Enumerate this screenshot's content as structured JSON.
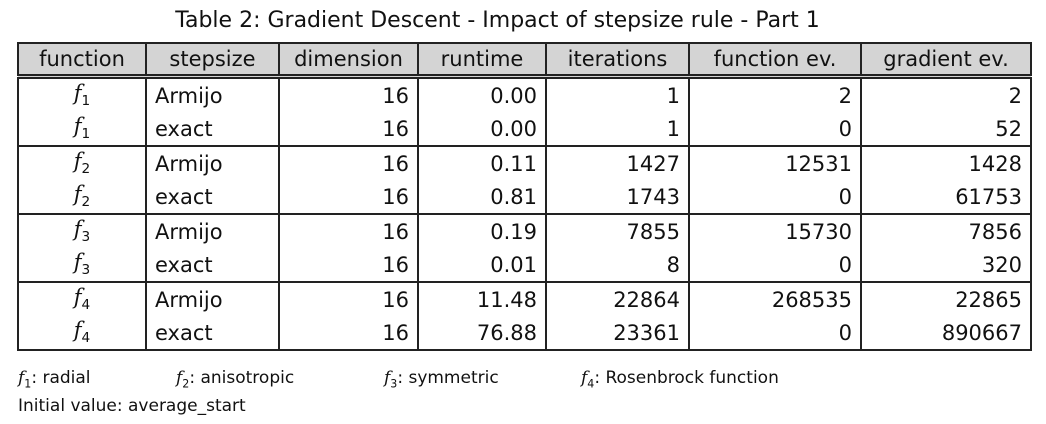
{
  "title": "Table 2: Gradient Descent - Impact of stepsize rule - Part 1",
  "table": {
    "header": [
      "function",
      "stepsize",
      "dimension",
      "runtime",
      "iterations",
      "function ev.",
      "gradient ev."
    ],
    "groups": [
      [
        [
          {
            "symbol": "f",
            "index": "1"
          },
          "Armijo",
          "16",
          "0.00",
          "1",
          "2",
          "2"
        ],
        [
          {
            "symbol": "f",
            "index": "1"
          },
          "exact",
          "16",
          "0.00",
          "1",
          "0",
          "52"
        ]
      ],
      [
        [
          {
            "symbol": "f",
            "index": "2"
          },
          "Armijo",
          "16",
          "0.11",
          "1427",
          "12531",
          "1428"
        ],
        [
          {
            "symbol": "f",
            "index": "2"
          },
          "exact",
          "16",
          "0.81",
          "1743",
          "0",
          "61753"
        ]
      ],
      [
        [
          {
            "symbol": "f",
            "index": "3"
          },
          "Armijo",
          "16",
          "0.19",
          "7855",
          "15730",
          "7856"
        ],
        [
          {
            "symbol": "f",
            "index": "3"
          },
          "exact",
          "16",
          "0.01",
          "8",
          "0",
          "320"
        ]
      ],
      [
        [
          {
            "symbol": "f",
            "index": "4"
          },
          "Armijo",
          "16",
          "11.48",
          "22864",
          "268535",
          "22865"
        ],
        [
          {
            "symbol": "f",
            "index": "4"
          },
          "exact",
          "16",
          "76.88",
          "23361",
          "0",
          "890667"
        ]
      ]
    ]
  },
  "legend": [
    {
      "symbol": "f",
      "index": "1",
      "text": ": radial"
    },
    {
      "symbol": "f",
      "index": "2",
      "text": ": anisotropic"
    },
    {
      "symbol": "f",
      "index": "3",
      "text": ": symmetric"
    },
    {
      "symbol": "f",
      "index": "4",
      "text": ": Rosenbrock function"
    }
  ],
  "note": "Initial value: average_start"
}
